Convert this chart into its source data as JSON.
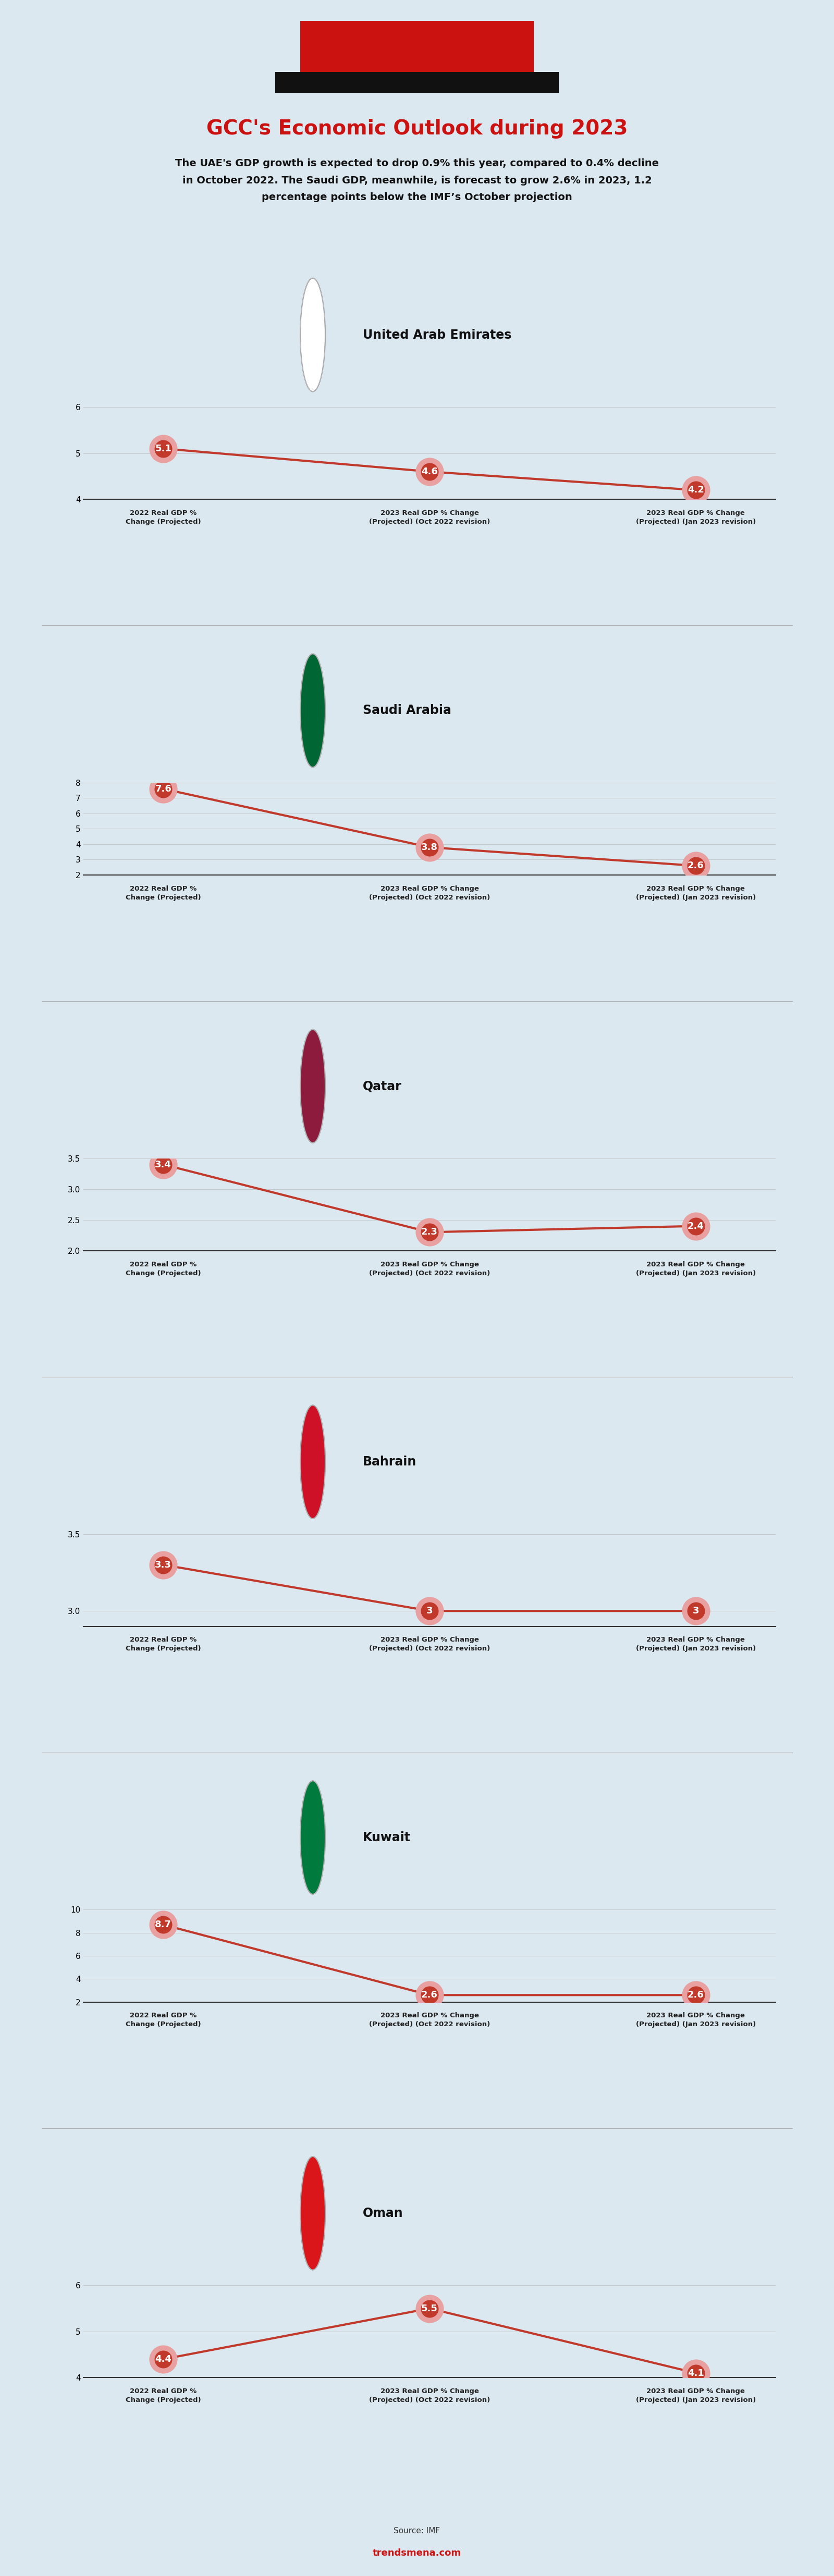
{
  "bg_color": "#dce8f0",
  "title": "GCC's Economic Outlook during 2023",
  "subtitle": "The UAE's GDP growth is expected to drop 0.9% this year, compared to 0.4% decline\nin October 2022. The Saudi GDP, meanwhile, is forecast to grow 2.6% in 2023, 1.2\npercentage points below the IMF’s October projection",
  "source": "Source: IMF",
  "website": "trendsmena.com",
  "charts": [
    {
      "country": "United Arab Emirates",
      "values": [
        5.1,
        4.6,
        4.2
      ],
      "ylim": [
        4.0,
        6.0
      ],
      "yticks": [
        4,
        5,
        6
      ],
      "flag_color": "uae"
    },
    {
      "country": "Saudi Arabia",
      "values": [
        7.6,
        3.8,
        2.6
      ],
      "ylim": [
        2.0,
        8.0
      ],
      "yticks": [
        2,
        3,
        4,
        5,
        6,
        7,
        8
      ],
      "flag_color": "ksa"
    },
    {
      "country": "Qatar",
      "values": [
        3.4,
        2.3,
        2.4
      ],
      "ylim": [
        2.0,
        3.5
      ],
      "yticks": [
        2,
        2.5,
        3,
        3.5
      ],
      "flag_color": "qatar"
    },
    {
      "country": "Bahrain",
      "values": [
        3.3,
        3.0,
        3.0
      ],
      "ylim": [
        2.9,
        3.5
      ],
      "yticks": [
        3,
        3.5
      ],
      "flag_color": "bahrain"
    },
    {
      "country": "Kuwait",
      "values": [
        8.7,
        2.6,
        2.6
      ],
      "ylim": [
        2.0,
        10.0
      ],
      "yticks": [
        2,
        4,
        6,
        8,
        10
      ],
      "flag_color": "kuwait"
    },
    {
      "country": "Oman",
      "values": [
        4.4,
        5.5,
        4.1
      ],
      "ylim": [
        4.0,
        6.0
      ],
      "yticks": [
        4,
        5,
        6
      ],
      "flag_color": "oman"
    }
  ],
  "xlabels": [
    "2022 Real GDP %\nChange (Projected)",
    "2023 Real GDP % Change\n(Projected) (Oct 2022 revision)",
    "2023 Real GDP % Change\n(Projected) (Jan 2023 revision)"
  ],
  "line_color": "#c0392b",
  "dot_color": "#c0392b",
  "dot_edge_color": "#e8a0a0",
  "flag_colors": {
    "uae": "#ffffff",
    "ksa": "#006633",
    "qatar": "#8d1b3d",
    "bahrain": "#ce1126",
    "kuwait": "#007a3d",
    "oman": "#db161b"
  }
}
